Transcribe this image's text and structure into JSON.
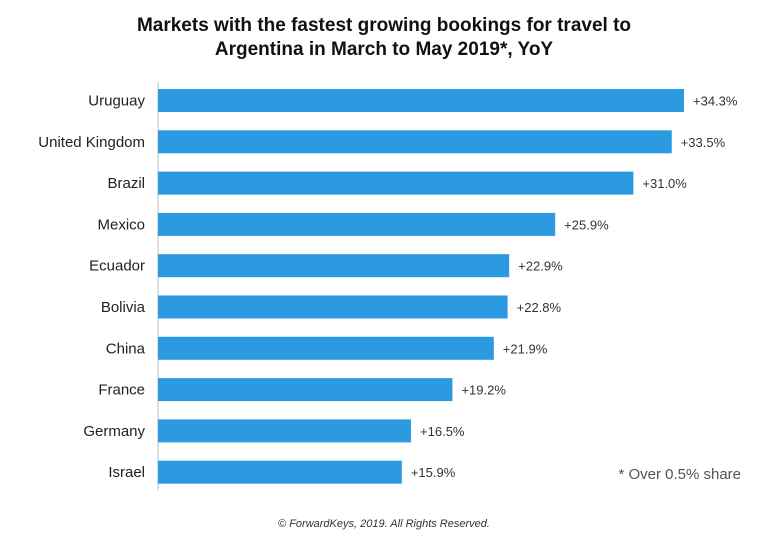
{
  "title": {
    "line1": "Markets with the fastest growing bookings for travel to",
    "line2": "Argentina in March to May 2019*, YoY"
  },
  "footnote": "* Over 0.5% share",
  "copyright": "© ForwardKeys, 2019. All Rights Reserved.",
  "colors": {
    "bar": "#2b9ae0",
    "axis": "#bdbdbd"
  },
  "chart_data": {
    "type": "bar",
    "orientation": "horizontal",
    "categories": [
      "Uruguay",
      "United Kingdom",
      "Brazil",
      "Mexico",
      "Ecuador",
      "Bolivia",
      "China",
      "France",
      "Germany",
      "Israel"
    ],
    "values": [
      34.3,
      33.5,
      31.0,
      25.9,
      22.9,
      22.8,
      21.9,
      19.2,
      16.5,
      15.9
    ],
    "data_labels": [
      "+34.3%",
      "+33.5%",
      "+31.0%",
      "+25.9%",
      "+22.9%",
      "+22.8%",
      "+21.9%",
      "+19.2%",
      "+16.5%",
      "+15.9%"
    ],
    "xlim": [
      0,
      34.3
    ],
    "grid": false,
    "legend": "none"
  }
}
